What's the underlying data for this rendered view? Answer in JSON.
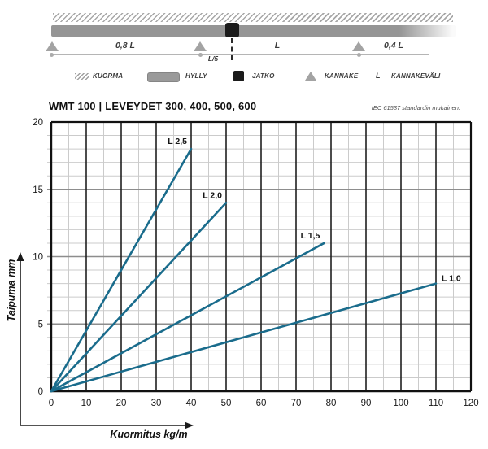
{
  "header": {
    "title": "WMT 100  | LEVEYDET 300, 400, 500, 600",
    "note": "IEC 61537 standardin mukainen."
  },
  "diagram": {
    "span_labels": {
      "left": "0,8 L",
      "mid": "L",
      "right": "0,4 L",
      "joint": "L/5"
    },
    "legend": [
      {
        "icon": "load-hatch-icon",
        "label": "KUORMA"
      },
      {
        "icon": "shelf-icon",
        "label": "HYLLY"
      },
      {
        "icon": "joint-icon",
        "label": "JATKO"
      },
      {
        "icon": "bracket-icon",
        "label": "KANNAKE"
      },
      {
        "icon": "length-symbol",
        "icon_text": "L",
        "label": "KANNAKEVÄLI"
      }
    ]
  },
  "chart_data": {
    "type": "line",
    "title": "WMT 100 | LEVEYDET 300, 400, 500, 600",
    "note": "IEC 61537 standardin mukainen.",
    "xlabel": "Kuormitus kg/m",
    "ylabel": "Taipuma mm",
    "xlim": [
      0,
      120
    ],
    "ylim": [
      0,
      20
    ],
    "x_ticks": [
      0,
      10,
      20,
      30,
      40,
      50,
      60,
      70,
      80,
      90,
      100,
      110,
      120
    ],
    "y_ticks": [
      0,
      5,
      10,
      15,
      20
    ],
    "x_minor_step": 5,
    "y_minor_step": 1,
    "grid": true,
    "legend_position": "inline-end-labels",
    "series": [
      {
        "name": "L 2,5",
        "x": [
          0,
          40
        ],
        "y": [
          0,
          18
        ],
        "label_side": "above"
      },
      {
        "name": "L 2,0",
        "x": [
          0,
          50
        ],
        "y": [
          0,
          14
        ],
        "label_side": "above"
      },
      {
        "name": "L 1,5",
        "x": [
          0,
          78
        ],
        "y": [
          0,
          11
        ],
        "label_side": "above"
      },
      {
        "name": "L 1,0",
        "x": [
          0,
          110
        ],
        "y": [
          0,
          8
        ],
        "label_side": "right"
      }
    ],
    "colors": {
      "series": "#1a6c8c",
      "grid_minor": "#cbcbcb",
      "grid_major_h": "#8d8d8d",
      "grid_major_v": "#1f1f1f",
      "axis": "#111111",
      "tick_label": "#1a1a1a"
    }
  }
}
